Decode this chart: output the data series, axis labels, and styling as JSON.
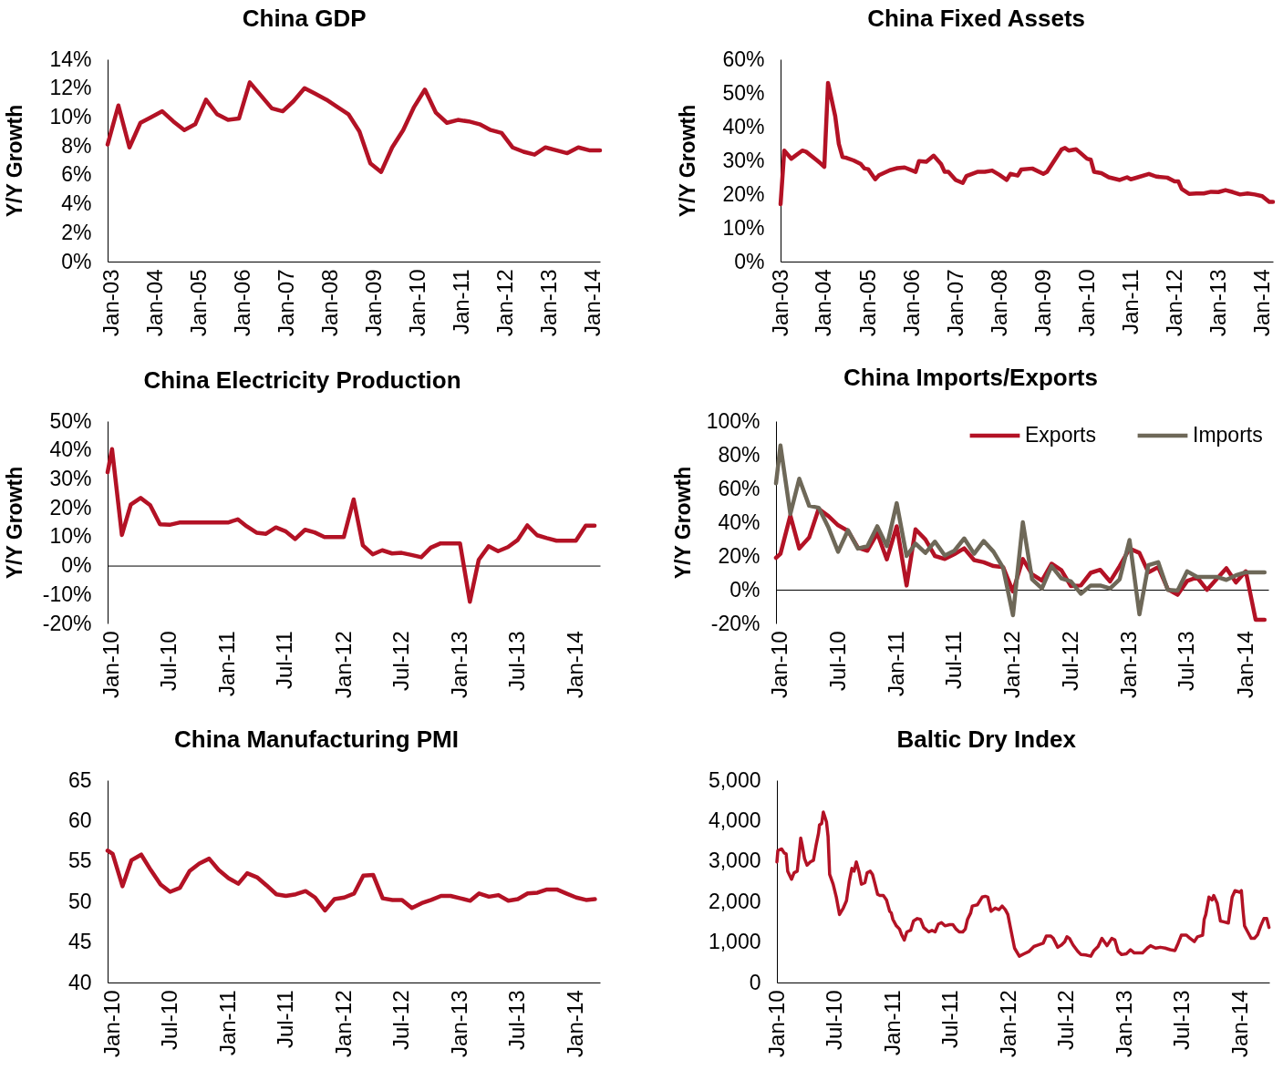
{
  "chart_data": [
    {
      "type": "line",
      "title": "China GDP",
      "ylabel": "Y/Y Growth",
      "x": [
        "2002-12",
        "2003-03",
        "2003-06",
        "2003-09",
        "2003-12",
        "2004-03",
        "2004-06",
        "2004-09",
        "2004-12",
        "2005-03",
        "2005-06",
        "2005-09",
        "2005-12",
        "2006-03",
        "2006-06",
        "2006-09",
        "2006-12",
        "2007-03",
        "2007-06",
        "2007-09",
        "2007-12",
        "2008-03",
        "2008-06",
        "2008-09",
        "2008-12",
        "2009-03",
        "2009-06",
        "2009-09",
        "2009-12",
        "2010-03",
        "2010-06",
        "2010-09",
        "2010-12",
        "2011-03",
        "2011-06",
        "2011-09",
        "2011-12",
        "2012-03",
        "2012-06",
        "2012-09",
        "2012-12",
        "2013-03",
        "2013-06",
        "2013-09",
        "2013-12",
        "2014-03"
      ],
      "series": [
        {
          "color": "#b31225",
          "values": [
            8.1,
            10.8,
            7.9,
            9.6,
            10.0,
            10.4,
            9.7,
            9.1,
            9.5,
            11.2,
            10.2,
            9.8,
            9.9,
            12.4,
            11.5,
            10.6,
            10.4,
            11.1,
            12.0,
            11.6,
            11.2,
            10.7,
            10.2,
            9.0,
            6.8,
            6.2,
            7.9,
            9.1,
            10.7,
            11.9,
            10.3,
            9.6,
            9.8,
            9.7,
            9.5,
            9.1,
            8.9,
            7.9,
            7.6,
            7.4,
            7.9,
            7.7,
            7.5,
            7.9,
            7.7,
            7.7
          ]
        }
      ],
      "xlim": [
        "2002-12",
        "2014-03"
      ],
      "xticks": [
        {
          "value": "2003-01",
          "label": "Jan-03"
        },
        {
          "value": "2004-01",
          "label": "Jan-04"
        },
        {
          "value": "2005-01",
          "label": "Jan-05"
        },
        {
          "value": "2006-01",
          "label": "Jan-06"
        },
        {
          "value": "2007-01",
          "label": "Jan-07"
        },
        {
          "value": "2008-01",
          "label": "Jan-08"
        },
        {
          "value": "2009-01",
          "label": "Jan-09"
        },
        {
          "value": "2010-01",
          "label": "Jan-10"
        },
        {
          "value": "2011-01",
          "label": "Jan-11"
        },
        {
          "value": "2012-01",
          "label": "Jan-12"
        },
        {
          "value": "2013-01",
          "label": "Jan-13"
        },
        {
          "value": "2014-01",
          "label": "Jan-14"
        }
      ],
      "ylim": [
        0,
        14
      ],
      "yticks": [
        {
          "value": 0,
          "label": "0%"
        },
        {
          "value": 2,
          "label": "2%"
        },
        {
          "value": 4,
          "label": "4%"
        },
        {
          "value": 6,
          "label": "6%"
        },
        {
          "value": 8,
          "label": "8%"
        },
        {
          "value": 10,
          "label": "10%"
        },
        {
          "value": 12,
          "label": "12%"
        },
        {
          "value": 14,
          "label": "14%"
        }
      ]
    },
    {
      "type": "line",
      "title": "China Fixed Assets",
      "ylabel": "Y/Y Growth",
      "x": [
        "2003-01",
        "2003-02",
        "2003-04",
        "2003-07",
        "2003-08",
        "2003-11",
        "2003-12",
        "2004-01",
        "2004-02",
        "2004-04",
        "2004-05",
        "2004-06",
        "2004-07",
        "2004-09",
        "2004-11",
        "2004-12",
        "2005-01",
        "2005-03",
        "2005-04",
        "2005-07",
        "2005-09",
        "2005-11",
        "2006-02",
        "2006-03",
        "2006-05",
        "2006-07",
        "2006-09",
        "2006-10",
        "2006-11",
        "2007-01",
        "2007-03",
        "2007-04",
        "2007-07",
        "2007-09",
        "2007-11",
        "2008-01",
        "2008-03",
        "2008-04",
        "2008-06",
        "2008-07",
        "2008-10",
        "2009-01",
        "2009-02",
        "2009-06",
        "2009-07",
        "2009-08",
        "2009-10",
        "2009-11",
        "2010-01",
        "2010-02",
        "2010-03",
        "2010-05",
        "2010-07",
        "2010-10",
        "2010-12",
        "2011-01",
        "2011-03",
        "2011-06",
        "2011-08",
        "2011-11",
        "2012-01",
        "2012-02",
        "2012-03",
        "2012-05",
        "2012-07",
        "2012-09",
        "2012-11",
        "2013-01",
        "2013-03",
        "2013-05",
        "2013-07",
        "2013-09",
        "2013-11",
        "2014-01",
        "2014-03",
        "2014-04"
      ],
      "series": [
        {
          "color": "#b31225",
          "values": [
            17.0,
            32.9,
            30.5,
            32.9,
            32.6,
            30.0,
            29.1,
            28.1,
            53.0,
            43.1,
            34.9,
            31.0,
            30.8,
            30.0,
            28.9,
            27.6,
            27.4,
            24.4,
            25.6,
            27.1,
            27.7,
            27.9,
            26.6,
            29.8,
            29.6,
            31.4,
            28.9,
            26.6,
            26.6,
            24.2,
            23.3,
            25.4,
            26.6,
            26.6,
            27.0,
            25.7,
            24.2,
            26.0,
            25.5,
            27.3,
            27.6,
            26.0,
            26.6,
            33.2,
            33.7,
            32.9,
            33.3,
            32.4,
            30.5,
            30.2,
            26.6,
            26.2,
            25.0,
            24.2,
            25.0,
            24.4,
            25.0,
            26.0,
            25.2,
            24.9,
            23.8,
            23.8,
            21.5,
            20.1,
            20.2,
            20.2,
            20.7,
            20.6,
            21.2,
            20.6,
            19.9,
            20.2,
            19.9,
            19.4,
            17.7,
            17.7
          ]
        }
      ],
      "xlim": [
        "2003-01",
        "2014-04"
      ],
      "xticks": [
        {
          "value": "2003-01",
          "label": "Jan-03"
        },
        {
          "value": "2004-01",
          "label": "Jan-04"
        },
        {
          "value": "2005-01",
          "label": "Jan-05"
        },
        {
          "value": "2006-01",
          "label": "Jan-06"
        },
        {
          "value": "2007-01",
          "label": "Jan-07"
        },
        {
          "value": "2008-01",
          "label": "Jan-08"
        },
        {
          "value": "2009-01",
          "label": "Jan-09"
        },
        {
          "value": "2010-01",
          "label": "Jan-10"
        },
        {
          "value": "2011-01",
          "label": "Jan-11"
        },
        {
          "value": "2012-01",
          "label": "Jan-12"
        },
        {
          "value": "2013-01",
          "label": "Jan-13"
        },
        {
          "value": "2014-01",
          "label": "Jan-14"
        }
      ],
      "ylim": [
        0,
        60
      ],
      "yticks": [
        {
          "value": 0,
          "label": "0%"
        },
        {
          "value": 10,
          "label": "10%"
        },
        {
          "value": 20,
          "label": "20%"
        },
        {
          "value": 30,
          "label": "30%"
        },
        {
          "value": 40,
          "label": "40%"
        },
        {
          "value": 50,
          "label": "50%"
        },
        {
          "value": 60,
          "label": "60%"
        }
      ]
    },
    {
      "type": "line",
      "title": "China Electricity Production",
      "ylabel": "Y/Y Growth",
      "x": [
        "2009-12-18",
        "2010-01",
        "2010-02",
        "2010-03",
        "2010-04",
        "2010-05",
        "2010-06",
        "2010-07",
        "2010-08",
        "2010-09",
        "2010-10",
        "2010-11",
        "2010-12",
        "2011-01",
        "2011-02",
        "2011-03",
        "2011-04",
        "2011-05",
        "2011-06",
        "2011-07",
        "2011-08",
        "2011-09",
        "2011-10",
        "2011-11",
        "2011-12",
        "2012-01",
        "2012-02",
        "2012-03",
        "2012-04",
        "2012-05",
        "2012-06",
        "2012-07",
        "2012-08",
        "2012-09",
        "2012-10",
        "2012-11",
        "2012-12",
        "2013-01",
        "2013-02",
        "2013-03",
        "2013-04",
        "2013-05",
        "2013-06",
        "2013-07",
        "2013-08",
        "2013-09",
        "2013-10",
        "2013-11",
        "2013-12",
        "2014-01",
        "2014-02",
        "2014-03"
      ],
      "series": [
        {
          "color": "#b31225",
          "values": [
            32.3,
            40.3,
            10.6,
            21.1,
            23.4,
            20.9,
            14.3,
            14.1,
            14.9,
            14.9,
            14.9,
            14.9,
            14.9,
            14.9,
            16.0,
            13.6,
            11.4,
            11.0,
            13.2,
            11.9,
            9.2,
            12.4,
            11.5,
            9.9,
            9.9,
            9.9,
            22.9,
            7.0,
            3.9,
            5.3,
            4.2,
            4.4,
            3.7,
            2.9,
            6.2,
            7.7,
            7.7,
            7.7,
            -12.5,
            2.0,
            6.7,
            5.0,
            6.4,
            8.8,
            13.9,
            10.5,
            9.5,
            8.6,
            8.6,
            8.6,
            13.8,
            13.8
          ]
        }
      ],
      "xlim": [
        "2009-12-18",
        "2014-03-18"
      ],
      "xticks": [
        {
          "value": "2010-01",
          "label": "Jan-10"
        },
        {
          "value": "2010-07",
          "label": "Jul-10"
        },
        {
          "value": "2011-01",
          "label": "Jan-11"
        },
        {
          "value": "2011-07",
          "label": "Jul-11"
        },
        {
          "value": "2012-01",
          "label": "Jan-12"
        },
        {
          "value": "2012-07",
          "label": "Jul-12"
        },
        {
          "value": "2013-01",
          "label": "Jan-13"
        },
        {
          "value": "2013-07",
          "label": "Jul-13"
        },
        {
          "value": "2014-01",
          "label": "Jan-14"
        }
      ],
      "ylim": [
        -20,
        50
      ],
      "yticks": [
        {
          "value": -20,
          "label": "-20%"
        },
        {
          "value": -10,
          "label": "-10%"
        },
        {
          "value": 0,
          "label": "0%"
        },
        {
          "value": 10,
          "label": "10%"
        },
        {
          "value": 20,
          "label": "20%"
        },
        {
          "value": 30,
          "label": "30%"
        },
        {
          "value": 40,
          "label": "40%"
        },
        {
          "value": 50,
          "label": "50%"
        }
      ]
    },
    {
      "type": "line",
      "title": "China Imports/Exports",
      "ylabel": "Y/Y Growth",
      "legend": "top right",
      "x": [
        "2009-12-18",
        "2010-01",
        "2010-02",
        "2010-03",
        "2010-04",
        "2010-05",
        "2010-06",
        "2010-07",
        "2010-08",
        "2010-09",
        "2010-10",
        "2010-11",
        "2010-12",
        "2011-01",
        "2011-02",
        "2011-03",
        "2011-04",
        "2011-05",
        "2011-06",
        "2011-07",
        "2011-08",
        "2011-09",
        "2011-10",
        "2011-11",
        "2011-12",
        "2012-01",
        "2012-02",
        "2012-03",
        "2012-04",
        "2012-05",
        "2012-06",
        "2012-07",
        "2012-08",
        "2012-09",
        "2012-10",
        "2012-11",
        "2012-12",
        "2013-01",
        "2013-02",
        "2013-03",
        "2013-04",
        "2013-05",
        "2013-06",
        "2013-07",
        "2013-08",
        "2013-09",
        "2013-10",
        "2013-11",
        "2013-12",
        "2014-01",
        "2014-02",
        "2014-03"
      ],
      "series": [
        {
          "name": "Exports",
          "color": "#b31225",
          "values": [
            18.9,
            21.3,
            44.0,
            24.4,
            30.9,
            48.0,
            43.6,
            38.2,
            34.9,
            24.9,
            23.1,
            33.5,
            18.0,
            37.6,
            2.5,
            35.8,
            29.8,
            20.0,
            18.2,
            21.1,
            24.5,
            17.6,
            16.3,
            14.0,
            13.4,
            -1.1,
            18.2,
            9.1,
            5.4,
            15.4,
            11.6,
            2.1,
            2.5,
            10.0,
            11.8,
            4.9,
            14.0,
            24.4,
            21.8,
            10.3,
            13.4,
            0.3,
            -3.0,
            5.2,
            7.3,
            -0.1,
            6.2,
            12.7,
            4.3,
            10.9,
            -17.9,
            -17.9
          ]
        },
        {
          "name": "Imports",
          "color": "#6e6858",
          "values": [
            63.1,
            85.5,
            44.9,
            65.8,
            49.8,
            48.6,
            36.7,
            22.5,
            35.3,
            24.4,
            25.8,
            37.6,
            25.8,
            51.3,
            20.0,
            27.3,
            21.8,
            28.5,
            20.3,
            23.1,
            30.4,
            21.3,
            28.9,
            22.5,
            13.0,
            -15.1,
            40.0,
            6.2,
            0.7,
            14.0,
            6.7,
            4.9,
            -2.4,
            2.5,
            2.5,
            0.7,
            6.2,
            29.5,
            -14.6,
            14.5,
            16.3,
            -0.1,
            -0.6,
            10.9,
            7.6,
            7.6,
            7.6,
            5.8,
            8.5,
            10.3,
            10.3,
            10.3
          ]
        }
      ],
      "xlim": [
        "2009-12-18",
        "2014-03-13"
      ],
      "xticks": [
        {
          "value": "2010-01",
          "label": "Jan-10"
        },
        {
          "value": "2010-07",
          "label": "Jul-10"
        },
        {
          "value": "2011-01",
          "label": "Jan-11"
        },
        {
          "value": "2011-07",
          "label": "Jul-11"
        },
        {
          "value": "2012-01",
          "label": "Jan-12"
        },
        {
          "value": "2012-07",
          "label": "Jul-12"
        },
        {
          "value": "2013-01",
          "label": "Jan-13"
        },
        {
          "value": "2013-07",
          "label": "Jul-13"
        },
        {
          "value": "2014-01",
          "label": "Jan-14"
        }
      ],
      "ylim": [
        -20,
        100
      ],
      "yticks": [
        {
          "value": -20,
          "label": "-20%"
        },
        {
          "value": 0,
          "label": "0%"
        },
        {
          "value": 20,
          "label": "20%"
        },
        {
          "value": 40,
          "label": "40%"
        },
        {
          "value": 60,
          "label": "60%"
        },
        {
          "value": 80,
          "label": "80%"
        },
        {
          "value": 100,
          "label": "100%"
        }
      ]
    },
    {
      "type": "line",
      "title": "China Manufacturing PMI",
      "x": [
        "2009-12-16",
        "2010-01",
        "2010-02",
        "2010-03",
        "2010-04",
        "2010-05",
        "2010-06",
        "2010-07",
        "2010-08",
        "2010-09",
        "2010-10",
        "2010-11",
        "2010-12",
        "2011-01",
        "2011-02",
        "2011-03",
        "2011-04",
        "2011-05",
        "2011-06",
        "2011-07",
        "2011-08",
        "2011-09",
        "2011-10",
        "2011-11",
        "2011-12",
        "2012-01",
        "2012-02",
        "2012-03",
        "2012-04",
        "2012-05",
        "2012-06",
        "2012-07",
        "2012-08",
        "2012-09",
        "2012-10",
        "2012-11",
        "2012-12",
        "2013-01",
        "2013-02",
        "2013-03",
        "2013-04",
        "2013-05",
        "2013-06",
        "2013-07",
        "2013-08",
        "2013-09",
        "2013-10",
        "2013-11",
        "2013-12",
        "2014-01",
        "2014-02",
        "2014-03"
      ],
      "series": [
        {
          "color": "#b31225",
          "values": [
            56.3,
            55.9,
            51.9,
            55.1,
            55.8,
            53.9,
            52.1,
            51.2,
            51.7,
            53.8,
            54.7,
            55.3,
            53.9,
            52.9,
            52.2,
            53.5,
            53.0,
            52.0,
            50.9,
            50.7,
            50.9,
            51.3,
            50.5,
            48.9,
            50.3,
            50.5,
            51.0,
            53.2,
            53.3,
            50.4,
            50.2,
            50.2,
            49.2,
            49.8,
            50.2,
            50.7,
            50.7,
            50.4,
            50.1,
            51.0,
            50.6,
            50.8,
            50.1,
            50.3,
            51.0,
            51.1,
            51.5,
            51.5,
            51.0,
            50.5,
            50.2,
            50.3
          ]
        }
      ],
      "xlim": [
        "2009-12-16",
        "2014-03-17"
      ],
      "xticks": [
        {
          "value": "2010-01",
          "label": "Jan-10"
        },
        {
          "value": "2010-07",
          "label": "Jul-10"
        },
        {
          "value": "2011-01",
          "label": "Jan-11"
        },
        {
          "value": "2011-07",
          "label": "Jul-11"
        },
        {
          "value": "2012-01",
          "label": "Jan-12"
        },
        {
          "value": "2012-07",
          "label": "Jul-12"
        },
        {
          "value": "2013-01",
          "label": "Jan-13"
        },
        {
          "value": "2013-07",
          "label": "Jul-13"
        },
        {
          "value": "2014-01",
          "label": "Jan-14"
        }
      ],
      "ylim": [
        40,
        65
      ],
      "yticks": [
        40,
        45,
        50,
        55,
        60,
        65
      ]
    },
    {
      "type": "line",
      "title": "Baltic Dry Index",
      "x": [
        "2010-01-01",
        "2010-01-04",
        "2010-01-16",
        "2010-01-24",
        "2010-01-30",
        "2010-02-04",
        "2010-02-16",
        "2010-02-24",
        "2010-03-06",
        "2010-03-13",
        "2010-03-17",
        "2010-03-22",
        "2010-03-29",
        "2010-04-06",
        "2010-04-16",
        "2010-04-26",
        "2010-05-04",
        "2010-05-12",
        "2010-05-15",
        "2010-05-22",
        "2010-05-27",
        "2010-06-01",
        "2010-06-06",
        "2010-06-11",
        "2010-06-16",
        "2010-06-27",
        "2010-07-07",
        "2010-07-17",
        "2010-07-29",
        "2010-08-08",
        "2010-08-17",
        "2010-08-25",
        "2010-09-01",
        "2010-09-08",
        "2010-09-16",
        "2010-09-24",
        "2010-10-05",
        "2010-10-12",
        "2010-10-22",
        "2010-10-29",
        "2010-11-06",
        "2010-11-14",
        "2010-11-21",
        "2010-12-02",
        "2010-12-12",
        "2010-12-22",
        "2010-12-27",
        "2011-01-01",
        "2011-01-12",
        "2011-01-22",
        "2011-01-29",
        "2011-02-06",
        "2011-02-14",
        "2011-02-26",
        "2011-03-07",
        "2011-03-19",
        "2011-03-29",
        "2011-04-08",
        "2011-04-24",
        "2011-05-04",
        "2011-05-14",
        "2011-05-24",
        "2011-06-03",
        "2011-06-14",
        "2011-06-29",
        "2011-07-09",
        "2011-07-19",
        "2011-07-29",
        "2011-08-09",
        "2011-08-17",
        "2011-08-24",
        "2011-09-03",
        "2011-09-08",
        "2011-09-24",
        "2011-10-09",
        "2011-10-19",
        "2011-10-27",
        "2011-11-06",
        "2011-11-19",
        "2011-12-01",
        "2011-12-11",
        "2011-12-21",
        "2011-12-29",
        "2012-01-07",
        "2012-01-19",
        "2012-02-03",
        "2012-02-18",
        "2012-03-05",
        "2012-03-20",
        "2012-04-04",
        "2012-04-18",
        "2012-04-28",
        "2012-05-12",
        "2012-05-20",
        "2012-06-03",
        "2012-06-15",
        "2012-06-25",
        "2012-07-02",
        "2012-07-10",
        "2012-07-21",
        "2012-08-05",
        "2012-08-15",
        "2012-08-30",
        "2012-09-15",
        "2012-09-25",
        "2012-10-08",
        "2012-10-20",
        "2012-11-05",
        "2012-11-20",
        "2012-11-30",
        "2012-12-10",
        "2012-12-21",
        "2013-01-05",
        "2013-01-18",
        "2013-01-30",
        "2013-02-25",
        "2013-03-12",
        "2013-03-22",
        "2013-04-07",
        "2013-04-22",
        "2013-05-07",
        "2013-05-23",
        "2013-06-07",
        "2013-06-17",
        "2013-06-27",
        "2013-07-13",
        "2013-07-23",
        "2013-08-07",
        "2013-08-17",
        "2013-09-02",
        "2013-09-07",
        "2013-09-12",
        "2013-09-22",
        "2013-10-02",
        "2013-10-07",
        "2013-10-18",
        "2013-10-28",
        "2013-11-07",
        "2013-11-22",
        "2013-12-04",
        "2013-12-13",
        "2013-12-28",
        "2014-01-02",
        "2014-01-07",
        "2014-01-12",
        "2014-01-22",
        "2014-02-02",
        "2014-02-12",
        "2014-02-22",
        "2014-03-04",
        "2014-03-14",
        "2014-03-23",
        "2014-03-30"
      ],
      "series": [
        {
          "color": "#b31225",
          "values": [
            2980,
            3260,
            3300,
            3200,
            3180,
            2750,
            2550,
            2710,
            2750,
            3260,
            3570,
            3380,
            3060,
            2900,
            2980,
            3020,
            3380,
            3690,
            3890,
            3930,
            4210,
            4090,
            3970,
            3610,
            2670,
            2430,
            2110,
            1680,
            1840,
            2020,
            2510,
            2820,
            2750,
            2980,
            2750,
            2430,
            2470,
            2710,
            2750,
            2670,
            2430,
            2180,
            2150,
            2150,
            2040,
            1760,
            1720,
            1560,
            1400,
            1320,
            1170,
            1050,
            1250,
            1290,
            1520,
            1580,
            1560,
            1360,
            1250,
            1290,
            1250,
            1440,
            1480,
            1400,
            1430,
            1430,
            1320,
            1250,
            1250,
            1320,
            1560,
            1720,
            1890,
            1920,
            2110,
            2130,
            2110,
            1760,
            1840,
            1800,
            1890,
            1800,
            1680,
            1320,
            850,
            650,
            710,
            770,
            890,
            930,
            970,
            1150,
            1150,
            1090,
            870,
            930,
            1010,
            1130,
            1090,
            930,
            770,
            690,
            680,
            650,
            790,
            890,
            1090,
            910,
            1090,
            1050,
            770,
            690,
            710,
            810,
            730,
            730,
            850,
            910,
            850,
            870,
            850,
            810,
            790,
            970,
            1170,
            1170,
            1100,
            1010,
            1130,
            1170,
            1560,
            1680,
            2110,
            2040,
            2150,
            1960,
            1520,
            1500,
            1470,
            2110,
            2270,
            2230,
            2270,
            1800,
            1400,
            1250,
            1090,
            1090,
            1180,
            1400,
            1580,
            1580,
            1360
          ]
        }
      ],
      "xlim": [
        "2010-01-01",
        "2014-03-31"
      ],
      "xticks": [
        {
          "value": "2010-01",
          "label": "Jan-10"
        },
        {
          "value": "2010-07",
          "label": "Jul-10"
        },
        {
          "value": "2011-01",
          "label": "Jan-11"
        },
        {
          "value": "2011-07",
          "label": "Jul-11"
        },
        {
          "value": "2012-01",
          "label": "Jan-12"
        },
        {
          "value": "2012-07",
          "label": "Jul-12"
        },
        {
          "value": "2013-01",
          "label": "Jan-13"
        },
        {
          "value": "2013-07",
          "label": "Jul-13"
        },
        {
          "value": "2014-01",
          "label": "Jan-14"
        }
      ],
      "ylim": [
        0,
        5000
      ],
      "yticks": [
        0,
        {
          "value": 1000,
          "label": "1,000"
        },
        {
          "value": 2000,
          "label": "2,000"
        },
        {
          "value": 3000,
          "label": "3,000"
        },
        {
          "value": 4000,
          "label": "4,000"
        },
        {
          "value": 5000,
          "label": "5,000"
        }
      ]
    }
  ]
}
